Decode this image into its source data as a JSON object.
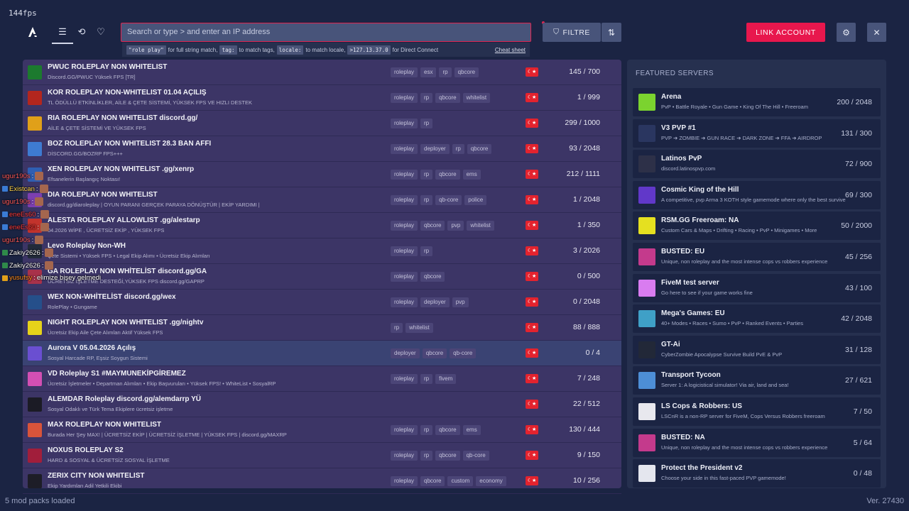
{
  "fps": "144fps",
  "search": {
    "placeholder": "Search or type > and enter an IP address",
    "hint_code_1": "\"role play\"",
    "hint_text_1": "for full string match,",
    "hint_code_2": "tag:",
    "hint_text_2": "to match tags,",
    "hint_code_3": "locale:",
    "hint_text_3": "to match locale,",
    "hint_code_4": ">127.13.37.0",
    "hint_text_4": "for Direct Connect",
    "cheat_sheet": "Cheat sheet"
  },
  "toolbar": {
    "filter_label": "FILTRE",
    "link_account_label": "LINK ACCOUNT"
  },
  "colors": {
    "accent": "#e8174d",
    "list_bg": "#3c3566",
    "page_bg": "#1b2443"
  },
  "servers": [
    {
      "name": "PWUC ROLEPLAY NON WHITELIST",
      "desc": "Discord.GG/PWUC Yüksek FPS [TR]",
      "tags": [
        "roleplay",
        "esx",
        "rp",
        "qbcore"
      ],
      "players": "145 / 700",
      "icon_color": "#1c7a2e"
    },
    {
      "name": "KOR ROLEPLAY NON-WHITELIST 01.04 AÇILIŞ",
      "desc": "TL ÖDÜLLÜ ETKİNLİKLER, AİLE & ÇETE SİSTEMİ, YÜKSEK FPS VE HIZLI DESTEK",
      "tags": [
        "roleplay",
        "rp",
        "qbcore",
        "whitelist"
      ],
      "players": "1 / 999",
      "icon_color": "#b3261e"
    },
    {
      "name": "RIA ROLEPLAY NON WHITELIST discord.gg/",
      "desc": "AİLE & ÇETE SİSTEMİ VE YÜKSEK FPS",
      "tags": [
        "roleplay",
        "rp"
      ],
      "players": "299 / 1000",
      "icon_color": "#e0a019"
    },
    {
      "name": "BOZ ROLEPLAY NON WHITELIST 28.3 BAN AFFI",
      "desc": "DİSCORD.GG/BOZRP FPS+++",
      "tags": [
        "roleplay",
        "deployer",
        "rp",
        "qbcore"
      ],
      "players": "93 / 2048",
      "icon_color": "#3e7bd1"
    },
    {
      "name": "XEN ROLEPLAY NON WHITELIST .gg/xenrp",
      "desc": "Efsanelerin Başlangıç Noktası!",
      "tags": [
        "roleplay",
        "rp",
        "qbcore",
        "ems"
      ],
      "players": "212 / 1111",
      "icon_color": "#2f5fb3"
    },
    {
      "name": "DIA ROLEPLAY NON WHITELIST",
      "desc": "discord.gg/diaroleplay  |  OYUN PARANI GERÇEK PARAYA DÖNÜŞTÜR  |  EKİP YARDIMI  |",
      "tags": [
        "roleplay",
        "rp",
        "qb-core",
        "police"
      ],
      "players": "1 / 2048",
      "icon_color": "#7c3fb0"
    },
    {
      "name": "ALESTA ROLEPLAY ALLOWLIST .gg/alestarp",
      "desc": "04.2026 WİPE , ÜCRETSİZ EKİP , YÜKSEK FPS",
      "tags": [
        "roleplay",
        "qbcore",
        "pvp",
        "whitelist"
      ],
      "players": "1 / 350",
      "icon_color": "#c2332c"
    },
    {
      "name": "Levo Roleplay Non-WH",
      "desc": "Çete Sistemi • Yüksek FPS • Legal Ekip Alımı • Ücretsiz Ekip Alımları",
      "tags": [
        "roleplay",
        "rp"
      ],
      "players": "3 / 2026",
      "icon_color": "#222a3a"
    },
    {
      "name": "GA ROLEPLAY NON WHİTELİST discord.gg/GA",
      "desc": "ÜCRETSİZ İŞLETME DESTEĞİ,YÜKSEK FPS discord.gg/GAPRP",
      "tags": [
        "roleplay",
        "qbcore"
      ],
      "players": "0 / 500",
      "icon_color": "#a8324a"
    },
    {
      "name": "WEX NON-WHİTELİST discord.gg/wex",
      "desc": "RolePlay • Gungame",
      "tags": [
        "roleplay",
        "deployer",
        "pvp"
      ],
      "players": "0 / 2048",
      "icon_color": "#254f8a"
    },
    {
      "name": "NIGHT ROLEPLAY NON WHITELIST .gg/nightv",
      "desc": "Ücretsiz Ekip Aile Çete Alımları Aktif Yüksek FPS",
      "tags": [
        "rp",
        "whitelist"
      ],
      "players": "88 / 888",
      "icon_color": "#e6d21a"
    },
    {
      "name": "Aurora V 05.04.2026 Açılış",
      "desc": "Sosyal Harcade RP, Eşsiz Soygun Sistemi",
      "tags": [
        "deployer",
        "qbcore",
        "qb-core"
      ],
      "players": "0 / 4",
      "icon_color": "#6a4fd1"
    },
    {
      "name": "VD Roleplay S1 #MAYMUNEKİPGİREMEZ",
      "desc": "Ücretsiz İşletmeler • Departman Alımları • Ekip Başvuruları • Yüksek FPS! • WhiteList • SosyalRP",
      "tags": [
        "roleplay",
        "rp",
        "fivem"
      ],
      "players": "7 / 248",
      "icon_color": "#d34fb3"
    },
    {
      "name": "ALEMDAR Roleplay discord.gg/alemdarrp YÜ",
      "desc": "Sosyal Odaklı ve Türk Tema Ekiplere ücretsiz işletme",
      "tags": [],
      "players": "22 / 512",
      "icon_color": "#1b1b25"
    },
    {
      "name": "MAX ROLEPLAY NON WHITELIST",
      "desc": "Burada Her Şey MAX! | ÜCRETSİZ EKİP | ÜCRETSİZ İŞLETME | YÜKSEK FPS | discord.gg/MAXRP",
      "tags": [
        "roleplay",
        "rp",
        "qbcore",
        "ems"
      ],
      "players": "130 / 444",
      "icon_color": "#d8543a"
    },
    {
      "name": "NOXUS ROLEPLAY S2",
      "desc": "HARD & SOSYAL & ÜCRETSİZ SOSYAL İŞLETME",
      "tags": [
        "roleplay",
        "rp",
        "qbcore",
        "qb-core"
      ],
      "players": "9 / 150",
      "icon_color": "#a11e3b"
    },
    {
      "name": "ZERIX CITY NON WHITELIST",
      "desc": "Ekip Yardımları Adil Yetkili Ekibi",
      "tags": [
        "roleplay",
        "qbcore",
        "custom",
        "economy"
      ],
      "players": "10 / 256",
      "icon_color": "#1d1d27"
    }
  ],
  "featured": {
    "title": "FEATURED SERVERS",
    "items": [
      {
        "name": "Arena",
        "desc": "PvP • Battle Royale • Gun Game • King Of The Hill • Freeroam",
        "players": "200 / 2048",
        "icon_color": "#7bd32f"
      },
      {
        "name": "V3 PVP #1",
        "desc": "PVP ➔ ZOMBIE ➔ GUN RACE ➔ DARK ZONE ➔ FFA ➔ AIRDROP",
        "players": "131 / 300",
        "icon_color": "#2a3660"
      },
      {
        "name": "Latinos PvP",
        "desc": "discord.latinospvp.com",
        "players": "72 / 900",
        "icon_color": "#2d3048"
      },
      {
        "name": "Cosmic King of the Hill",
        "desc": "A competitive, pvp Arma 3 KOTH style gamemode where only the best survive",
        "players": "69 / 300",
        "icon_color": "#6138c9"
      },
      {
        "name": "RSM.GG Freeroam: NA",
        "desc": "Custom Cars & Maps • Drifting • Racing • PvP • Minigames • More",
        "players": "50 / 2000",
        "icon_color": "#e5e020"
      },
      {
        "name": "BUSTED: EU",
        "desc": "Unique, non roleplay and the most intense cops vs robbers experience",
        "players": "45 / 256",
        "icon_color": "#c43a8c"
      },
      {
        "name": "FiveM test server",
        "desc": "Go here to see if your game works fine",
        "players": "43 / 100",
        "icon_color": "#d97cf0"
      },
      {
        "name": "Mega's Games: EU",
        "desc": "40+ Modes • Races • Sumo • PvP • Ranked Events • Parties",
        "players": "42 / 2048",
        "icon_color": "#3fa0c7"
      },
      {
        "name": "GT-Ai",
        "desc": "CyberZombie Apocalypse Survive Build PvE & PvP",
        "players": "31 / 128",
        "icon_color": "#222838"
      },
      {
        "name": "Transport Tycoon",
        "desc": "Server 1: A logicistical simulator! Via air, land and sea!",
        "players": "27 / 621",
        "icon_color": "#4d8ed6"
      },
      {
        "name": "LS Cops & Robbers: US",
        "desc": "LSCnR is a non-RP server for FiveM, Cops Versus Robbers freeroam",
        "players": "7 / 50",
        "icon_color": "#e8e8ee"
      },
      {
        "name": "BUSTED: NA",
        "desc": "Unique, non roleplay and the most intense cops vs robbers experience",
        "players": "5 / 64",
        "icon_color": "#c43a8c"
      },
      {
        "name": "Protect the President v2",
        "desc": "Choose your side in this fast-paced PVP gamemode!",
        "players": "0 / 48",
        "icon_color": "#e4e6ee"
      }
    ]
  },
  "chat": [
    {
      "user": "ugur190s",
      "sep": " :",
      "msg": "",
      "user_color": "#ff5a5a",
      "badge_color": ""
    },
    {
      "user": "Existcan",
      "sep": " :",
      "msg": "",
      "user_color": "#ffd54a",
      "badge_color": "#3a7bd5"
    },
    {
      "user": "ugur190s",
      "sep": " :",
      "msg": "",
      "user_color": "#ff5a5a",
      "badge_color": ""
    },
    {
      "user": "eneEs60",
      "sep": " :",
      "msg": "",
      "user_color": "#ff3b3b",
      "badge_color": "#3a7bd5"
    },
    {
      "user": "eneEs60",
      "sep": " :",
      "msg": "",
      "user_color": "#ff3b3b",
      "badge_color": "#3a7bd5"
    },
    {
      "user": "ugur190s",
      "sep": " :",
      "msg": "",
      "user_color": "#ff5a5a",
      "badge_color": ""
    },
    {
      "user": "Zakiy2626",
      "sep": " :",
      "msg": "",
      "user_color": "#f2f2f2",
      "badge_color": "#2f8a4a"
    },
    {
      "user": "Zakiy2626",
      "sep": " :",
      "msg": "",
      "user_color": "#f2f2f2",
      "badge_color": "#2f8a4a"
    },
    {
      "user": "yusufsy",
      "sep": " :",
      "msg": "elimize bişey gelmedi",
      "user_color": "#ff8c1a",
      "badge_color": "#e0a019"
    }
  ],
  "status": {
    "mod_packs": "5 mod packs loaded",
    "version": "Ver. 27430"
  }
}
